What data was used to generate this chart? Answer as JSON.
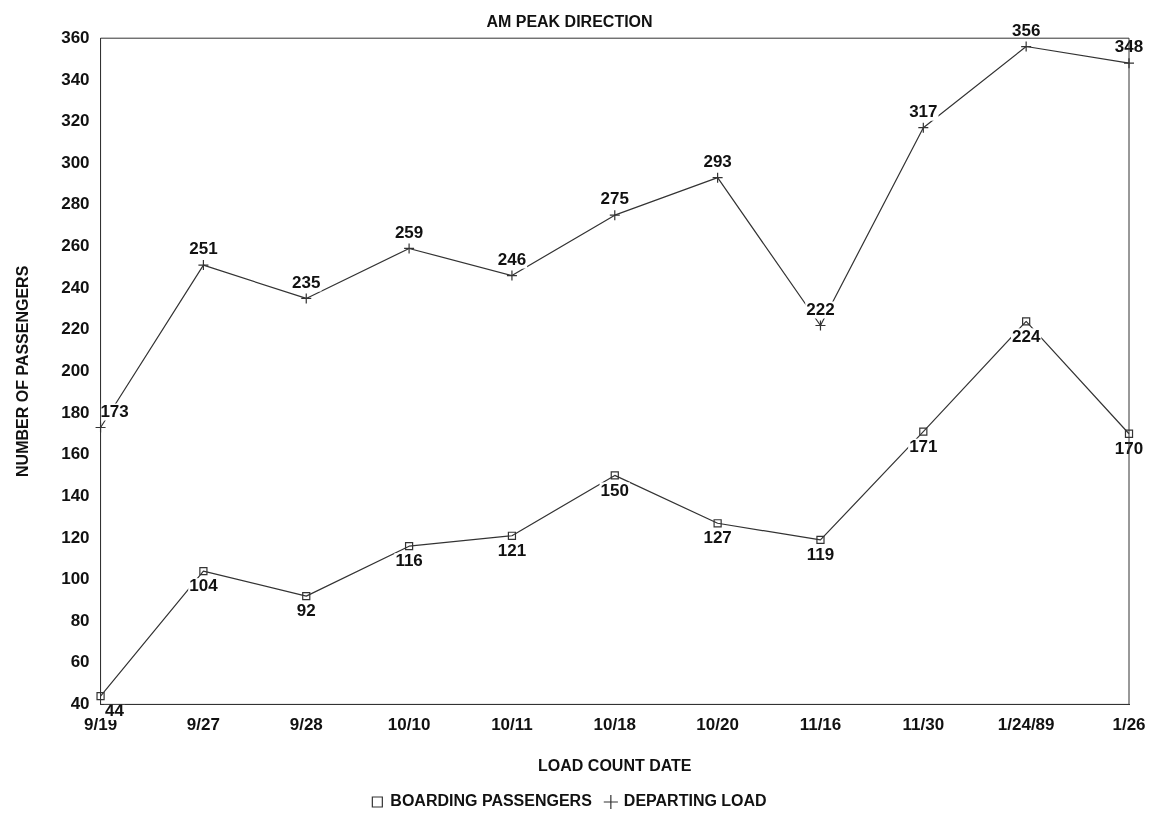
{
  "chart_data": {
    "type": "line",
    "title": "AM PEAK DIRECTION",
    "xlabel": "LOAD COUNT DATE",
    "ylabel": "NUMBER OF PASSENGERS",
    "categories": [
      "9/19",
      "9/27",
      "9/28",
      "10/10",
      "10/11",
      "10/18",
      "10/20",
      "11/16",
      "11/30",
      "1/24/89",
      "1/26"
    ],
    "series": [
      {
        "name": "BOARDING PASSENGERS",
        "color": "#333333",
        "marker": "square",
        "values": [
          44,
          104,
          92,
          116,
          121,
          150,
          127,
          119,
          171,
          224,
          170
        ]
      },
      {
        "name": "DEPARTING LOAD",
        "color": "#333333",
        "marker": "cross",
        "values": [
          173,
          251,
          235,
          259,
          246,
          275,
          293,
          222,
          317,
          356,
          348
        ]
      }
    ],
    "ylim": [
      40,
      360
    ],
    "yticks": [
      40,
      60,
      80,
      100,
      120,
      140,
      160,
      180,
      200,
      220,
      240,
      260,
      280,
      300,
      320,
      340,
      360
    ],
    "grid": false,
    "legend": "bottom",
    "data_labels": true,
    "line_style": "solid"
  }
}
